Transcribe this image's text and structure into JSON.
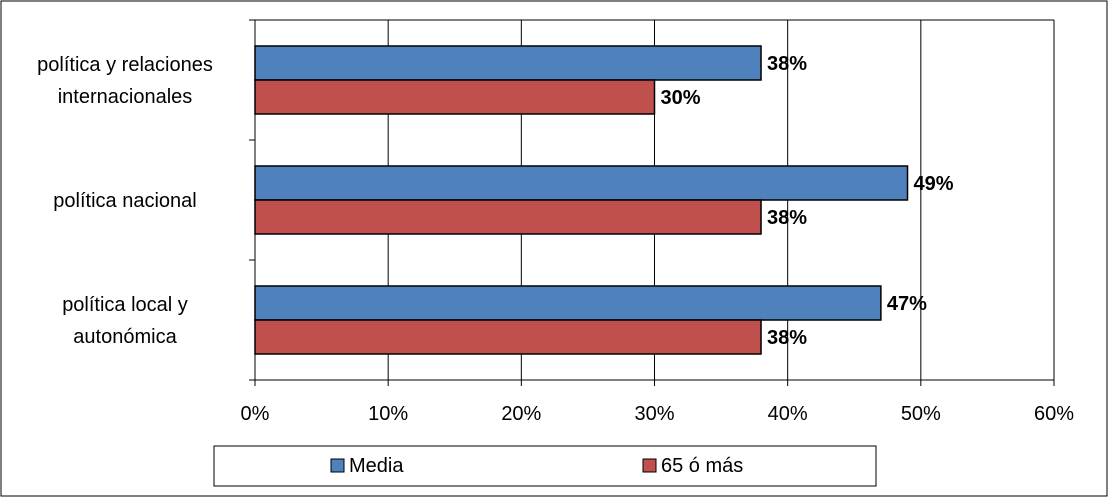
{
  "chart_data": {
    "type": "bar",
    "orientation": "horizontal",
    "categories": [
      [
        "política y relaciones",
        "internacionales"
      ],
      [
        "política nacional"
      ],
      [
        "política local y",
        "autonómica"
      ]
    ],
    "series": [
      {
        "name": "Media",
        "values": [
          38,
          49,
          47
        ],
        "color": "#4F81BD"
      },
      {
        "name": "65 ó más",
        "values": [
          30,
          38,
          38
        ],
        "color": "#C0504D"
      }
    ],
    "data_labels": [
      [
        "38%",
        "49%",
        "47%"
      ],
      [
        "30%",
        "38%",
        "38%"
      ]
    ],
    "x_ticks": [
      "0%",
      "10%",
      "20%",
      "30%",
      "40%",
      "50%",
      "60%"
    ],
    "xlim": [
      0,
      60
    ],
    "grid": "vertical",
    "legend_position": "bottom"
  }
}
